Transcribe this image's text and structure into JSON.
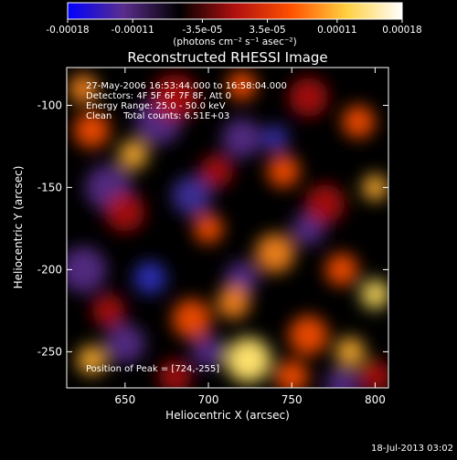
{
  "colorbar": {
    "ticks": [
      "-0.00018",
      "-0.00011",
      "-3.5e-05",
      "3.5e-05",
      "0.00011",
      "0.00018"
    ],
    "tick_values": [
      -0.00018,
      -0.00011,
      -3.5e-05,
      3.5e-05,
      0.00011,
      0.00018
    ],
    "range": [
      -0.00018,
      0.00018
    ],
    "unit_label": "(photons cm⁻² s⁻¹ asec⁻²)",
    "colors": [
      "#0000ff",
      "#5a2d8c",
      "#000000",
      "#b01010",
      "#ff5000",
      "#ffd040",
      "#ffffff"
    ]
  },
  "chart_data": {
    "type": "heatmap",
    "title": "Reconstructed RHESSI Image",
    "xlabel": "Heliocentric X (arcsec)",
    "ylabel": "Heliocentric Y (arcsec)",
    "xlim": [
      615,
      808
    ],
    "ylim": [
      -272,
      -77
    ],
    "xticks": [
      650,
      700,
      750,
      800
    ],
    "yticks": [
      -100,
      -150,
      -200,
      -250
    ],
    "peak_xy": [
      724,
      -255
    ],
    "annotations": [
      "27-May-2006 16:53:44.000 to 16:58:04.000",
      "Detectors: 4F 5F 6F 7F 8F, Att 0",
      "Energy Range: 25.0 - 50.0 keV",
      "Clean    Total counts: 6.51E+03",
      "Position of Peak = [724,-255]"
    ]
  },
  "timestamp": "18-Jul-2013 03:02"
}
